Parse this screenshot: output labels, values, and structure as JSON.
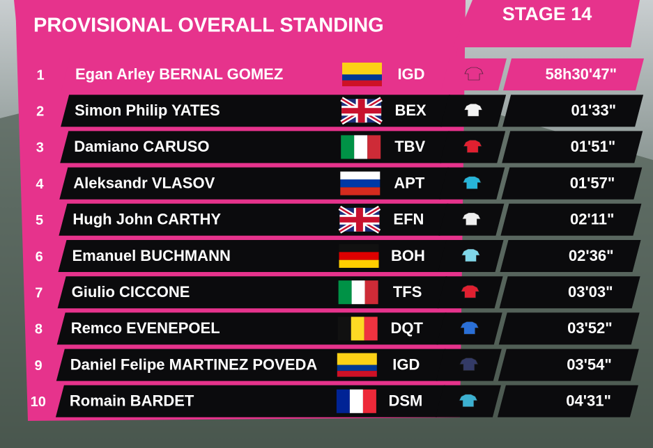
{
  "header": {
    "title": "PROVISIONAL OVERALL STANDING",
    "stage": "STAGE 14"
  },
  "rows": [
    {
      "rank": 1,
      "name": "Egan Arley BERNAL GOMEZ",
      "team": "IGD",
      "time": "58h30'47\""
    },
    {
      "rank": 2,
      "name": "Simon Philip YATES",
      "team": "BEX",
      "time": "01'33\""
    },
    {
      "rank": 3,
      "name": "Damiano CARUSO",
      "team": "TBV",
      "time": "01'51\""
    },
    {
      "rank": 4,
      "name": "Aleksandr VLASOV",
      "team": "APT",
      "time": "01'57\""
    },
    {
      "rank": 5,
      "name": "Hugh John CARTHY",
      "team": "EFN",
      "time": "02'11\""
    },
    {
      "rank": 6,
      "name": "Emanuel BUCHMANN",
      "team": "BOH",
      "time": "02'36\""
    },
    {
      "rank": 7,
      "name": "Giulio CICCONE",
      "team": "TFS",
      "time": "03'03\""
    },
    {
      "rank": 8,
      "name": "Remco EVENEPOEL",
      "team": "DQT",
      "time": "03'52\""
    },
    {
      "rank": 9,
      "name": "Daniel Felipe MARTINEZ POVEDA",
      "team": "IGD",
      "time": "03'54\""
    },
    {
      "rank": 10,
      "name": "Romain BARDET",
      "team": "DSM",
      "time": "04'31\""
    }
  ]
}
